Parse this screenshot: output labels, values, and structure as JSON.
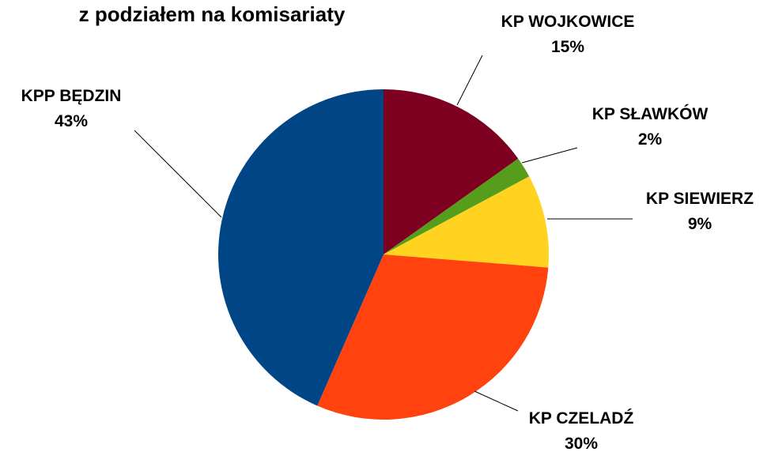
{
  "chart_data": {
    "type": "pie",
    "title": "z podziałem na komisariaty",
    "categories": [
      "KP WOJKOWICE",
      "KP SŁAWKÓW",
      "KP SIEWIERZ",
      "KP CZELADŹ",
      "KPP BĘDZIN"
    ],
    "values": [
      15,
      2,
      9,
      30,
      43
    ],
    "value_labels": [
      "15%",
      "2%",
      "9%",
      "30%",
      "43%"
    ],
    "colors": [
      "#7e0021",
      "#579d1c",
      "#ffd320",
      "#ff420e",
      "#004586"
    ]
  }
}
